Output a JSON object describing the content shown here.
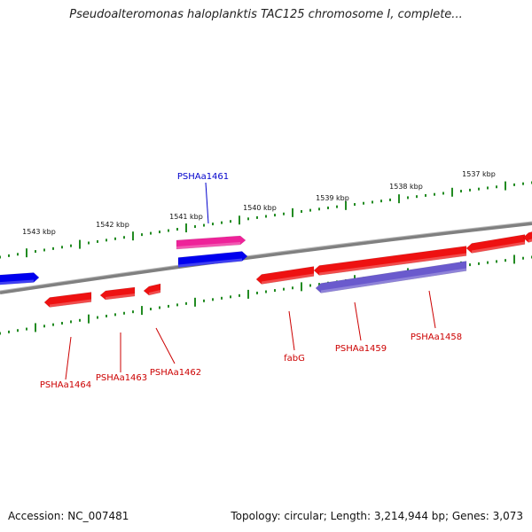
{
  "title": "Pseudoalteromonas haloplanktis TAC125 chromosome I, complete...",
  "footer": {
    "accession": "Accession: NC_007481",
    "topology": "Topology: circular; Length: 3,214,944 bp; Genes: 3,073"
  },
  "colors": {
    "backbone": "#808080",
    "forward_gene": "#0000ee",
    "reverse_gene": "#ee1111",
    "highlight_gene": "#ee2299",
    "operon": "#6a5acd",
    "tick": "#228b22",
    "label_reverse": "#cc0000",
    "label_forward": "#0000cc"
  },
  "ruler": {
    "labels": [
      "1543 kbp",
      "1542 kbp",
      "1541 kbp",
      "1540 kbp",
      "1539 kbp",
      "1538 kbp",
      "1537 kbp"
    ]
  },
  "genes": [
    {
      "label": "",
      "strand": "forward",
      "color": "forward_gene"
    },
    {
      "label": "PSHAa1461",
      "strand": "forward",
      "color": "highlight_gene"
    },
    {
      "label": "",
      "strand": "forward",
      "color": "forward_gene"
    },
    {
      "label": "PSHAa1464",
      "strand": "reverse",
      "color": "reverse_gene"
    },
    {
      "label": "PSHAa1463",
      "strand": "reverse",
      "color": "reverse_gene"
    },
    {
      "label": "PSHAa1462",
      "strand": "reverse",
      "color": "reverse_gene"
    },
    {
      "label": "fabG",
      "strand": "reverse",
      "color": "reverse_gene"
    },
    {
      "label": "PSHAa1459",
      "strand": "reverse",
      "color": "reverse_gene"
    },
    {
      "label": "PSHAa1458",
      "strand": "reverse",
      "color": "reverse_gene"
    },
    {
      "label": "",
      "strand": "reverse",
      "color": "reverse_gene"
    },
    {
      "label": "",
      "strand": "reverse",
      "color": "reverse_gene"
    }
  ]
}
